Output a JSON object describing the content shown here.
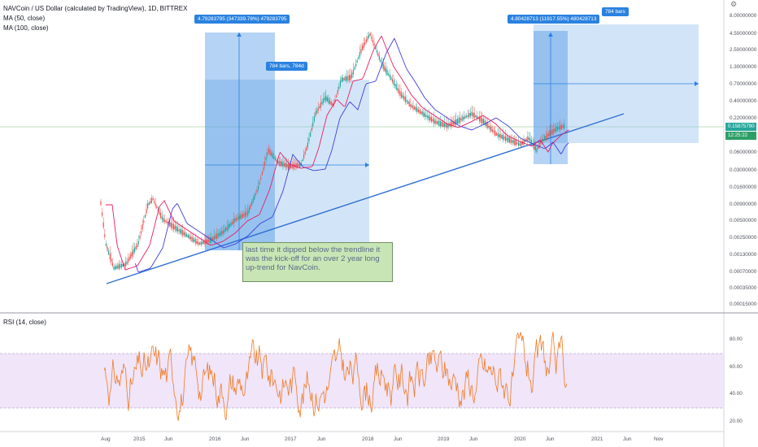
{
  "legend": {
    "symbol_line": "NAVCoin / US Dollar (calculated by TradingView), 1D, BITTREX",
    "ma50": "MA (50, close)",
    "ma100": "MA (100, close)"
  },
  "rsi_legend": "RSI (14, close)",
  "price_axis_ticks": [
    "8.00000000",
    "4.50000000",
    "2.50000000",
    "1.30000000",
    "0.70000000",
    "0.40000000",
    "0.22000000",
    "0.06000000",
    "0.03000000",
    "0.01600000",
    "0.00900000",
    "0.00500000",
    "0.00250000",
    "0.00130000",
    "0.00070000",
    "0.00035000",
    "0.00015000"
  ],
  "rsi_axis_ticks": [
    "80.00",
    "60.00",
    "40.00",
    "20.00"
  ],
  "time_axis_ticks": [
    "Aug",
    "2015",
    "Jun",
    "2016",
    "Jun",
    "2017",
    "Jun",
    "2018",
    "Jun",
    "2019",
    "Jun",
    "2020",
    "Jun",
    "2021",
    "Jun",
    "Nov"
  ],
  "current_price_badge": "0.15875790",
  "countdown_badge": "12:25:22",
  "measure_labels": {
    "first_range": "4.79283795 (347339.78%) 479283795",
    "first_bars": "784 bars, 784d",
    "second_range": "4.80428713 (11917.55%) 480428713",
    "second_bars": "784 bars"
  },
  "note_text": "last time it dipped below the trendline it was the kick-off for an over 2 year long up-trend for NavCoin.",
  "colors": {
    "candle_up": "#26a69a",
    "candle_down": "#ef5350",
    "ma50": "#e91e63",
    "ma100": "#3f3fd9",
    "trendline": "#2f6fd6",
    "measure_fill": "#2a82e0",
    "rsi_line": "#f07b24",
    "rsi_band": "#ede0f8"
  }
}
